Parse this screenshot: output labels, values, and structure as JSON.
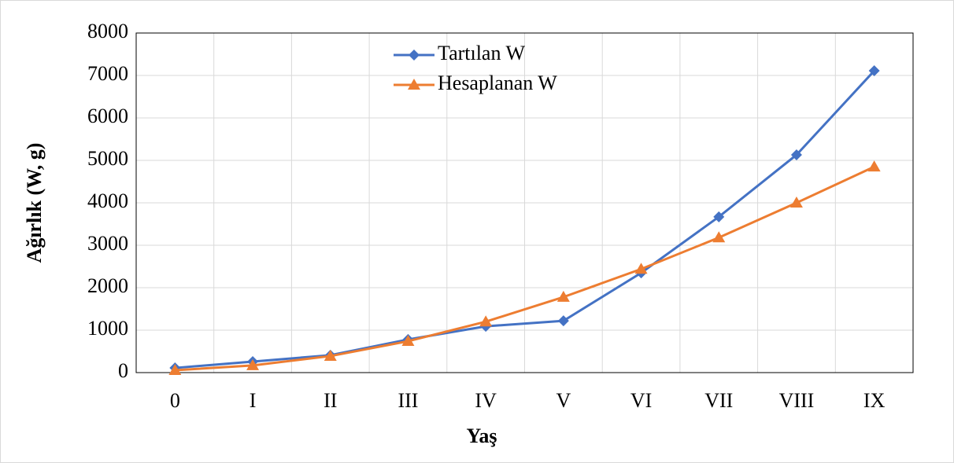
{
  "chart_data": {
    "type": "line",
    "x_label": "Yaş",
    "y_label": "Ağırlık (W, g)",
    "categories": [
      "0",
      "I",
      "II",
      "III",
      "IV",
      "V",
      "VI",
      "VII",
      "VIII",
      "IX"
    ],
    "series": [
      {
        "name": "Tartılan W",
        "color": "#4472c4",
        "marker": "diamond",
        "values": [
          110,
          260,
          410,
          780,
          1090,
          1220,
          2350,
          3670,
          5130,
          7110
        ]
      },
      {
        "name": "Hesaplanan W",
        "color": "#ed7d31",
        "marker": "triangle",
        "values": [
          55,
          170,
          390,
          740,
          1200,
          1780,
          2440,
          3180,
          4000,
          4850
        ]
      }
    ],
    "ylim": [
      0,
      8000
    ],
    "yticks": [
      0,
      1000,
      2000,
      3000,
      4000,
      5000,
      6000,
      7000,
      8000
    ],
    "grid": true,
    "legend": "top"
  }
}
